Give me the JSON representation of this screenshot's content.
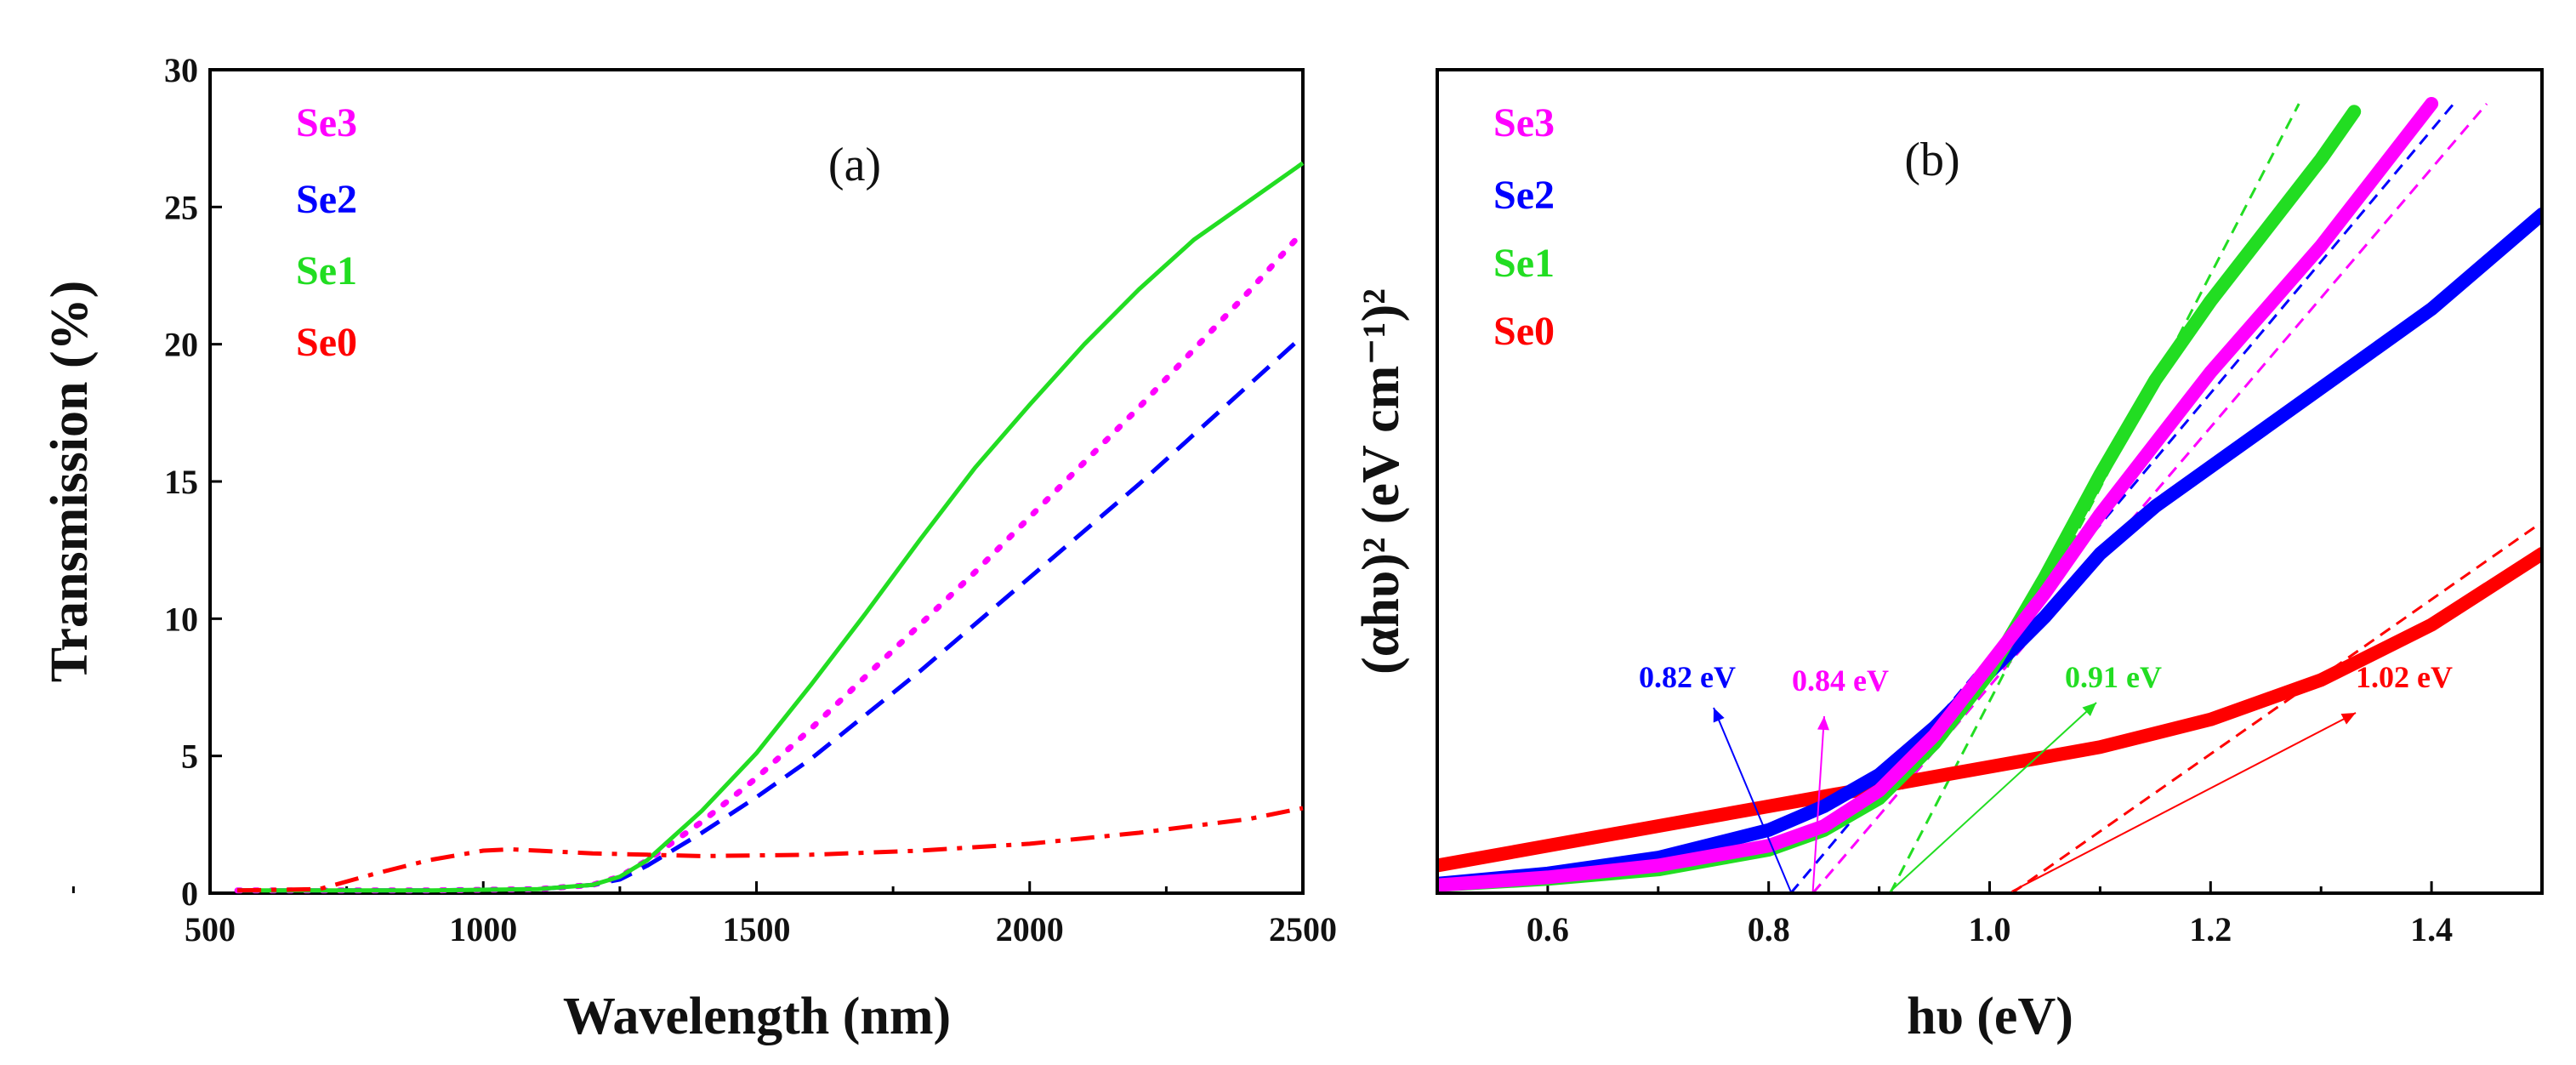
{
  "chart_data": [
    {
      "type": "line",
      "panel_label": "(a)",
      "xlabel": "Wavelength (nm)",
      "ylabel": "Transmission (%)",
      "xlim": [
        500,
        2500
      ],
      "ylim": [
        0,
        30
      ],
      "xticks": [
        "500",
        "1000",
        "1500",
        "2000",
        "2500"
      ],
      "yticks": [
        "0",
        "5",
        "10",
        "15",
        "20",
        "25",
        "30"
      ],
      "legend": [
        "Se3",
        "Se2",
        "Se1",
        "Se0"
      ],
      "series": [
        {
          "name": "Se3",
          "color": "#ff00ff",
          "style": "dotted",
          "x": [
            550,
            700,
            900,
            1100,
            1200,
            1250,
            1300,
            1400,
            1500,
            1600,
            1700,
            1800,
            1900,
            2000,
            2100,
            2200,
            2300,
            2400,
            2500
          ],
          "y": [
            0.1,
            0.1,
            0.1,
            0.15,
            0.3,
            0.6,
            1.2,
            2.6,
            4.2,
            6.0,
            7.9,
            9.8,
            11.7,
            13.7,
            15.7,
            17.7,
            19.8,
            21.9,
            24.1
          ]
        },
        {
          "name": "Se2",
          "color": "#0000ff",
          "style": "dashed",
          "x": [
            550,
            700,
            900,
            1100,
            1200,
            1250,
            1300,
            1400,
            1500,
            1600,
            1700,
            1800,
            1900,
            2000,
            2100,
            2200,
            2300,
            2400,
            2500
          ],
          "y": [
            0.1,
            0.1,
            0.1,
            0.15,
            0.3,
            0.5,
            1.0,
            2.2,
            3.5,
            4.9,
            6.5,
            8.1,
            9.8,
            11.5,
            13.2,
            14.9,
            16.7,
            18.5,
            20.3
          ]
        },
        {
          "name": "Se1",
          "color": "#22dd22",
          "style": "solid",
          "x": [
            550,
            700,
            900,
            1100,
            1200,
            1250,
            1300,
            1400,
            1500,
            1600,
            1700,
            1800,
            1900,
            2000,
            2100,
            2200,
            2300,
            2400,
            2500
          ],
          "y": [
            0.1,
            0.1,
            0.1,
            0.15,
            0.3,
            0.6,
            1.2,
            3.0,
            5.1,
            7.6,
            10.2,
            12.9,
            15.5,
            17.8,
            20.0,
            22.0,
            23.8,
            25.2,
            26.6
          ]
        },
        {
          "name": "Se0",
          "color": "#ff0000",
          "style": "dashdot",
          "x": [
            550,
            700,
            800,
            900,
            1000,
            1050,
            1100,
            1200,
            1300,
            1400,
            1600,
            1800,
            2000,
            2200,
            2400,
            2500
          ],
          "y": [
            0.1,
            0.15,
            0.7,
            1.2,
            1.55,
            1.6,
            1.55,
            1.45,
            1.4,
            1.35,
            1.4,
            1.55,
            1.8,
            2.2,
            2.7,
            3.1
          ]
        }
      ]
    },
    {
      "type": "scatter",
      "panel_label": "(b)",
      "xlabel": "hυ (eV)",
      "ylabel": "(αhυ)² (eV cm⁻¹)²",
      "xlim": [
        0.5,
        1.5
      ],
      "ylim": [
        0,
        100
      ],
      "y_ticks_shown": false,
      "xticks": [
        "0.6",
        "0.8",
        "1.0",
        "1.2",
        "1.4"
      ],
      "legend": [
        "Se3",
        "Se2",
        "Se1",
        "Se0"
      ],
      "series": [
        {
          "name": "Se3",
          "color": "#ff00ff",
          "x": [
            0.5,
            0.6,
            0.7,
            0.8,
            0.85,
            0.9,
            0.95,
            1.0,
            1.05,
            1.1,
            1.15,
            1.2,
            1.25,
            1.3,
            1.35,
            1.4
          ],
          "y": [
            1,
            2,
            3.5,
            6,
            8.5,
            13,
            20,
            29,
            38,
            48,
            57,
            66,
            74,
            82,
            91,
            100
          ]
        },
        {
          "name": "Se2",
          "color": "#0000ff",
          "x": [
            0.5,
            0.6,
            0.7,
            0.8,
            0.85,
            0.9,
            0.95,
            1.0,
            1.05,
            1.1,
            1.15,
            1.2,
            1.25,
            1.3,
            1.35,
            1.4,
            1.45,
            1.5
          ],
          "y": [
            1.2,
            2.5,
            4.5,
            8,
            11,
            15,
            21,
            28,
            35,
            43,
            49,
            54,
            59,
            64,
            69,
            74,
            80,
            86
          ]
        },
        {
          "name": "Se1",
          "color": "#22dd22",
          "x": [
            0.5,
            0.6,
            0.7,
            0.8,
            0.85,
            0.9,
            0.95,
            1.0,
            1.05,
            1.1,
            1.15,
            1.2,
            1.25,
            1.3,
            1.33
          ],
          "y": [
            1,
            1.8,
            3,
            5.5,
            8,
            12,
            19,
            28,
            40,
            53,
            65,
            75,
            84,
            93,
            99
          ]
        },
        {
          "name": "Se0",
          "color": "#ff0000",
          "x": [
            0.5,
            0.6,
            0.7,
            0.8,
            0.9,
            1.0,
            1.1,
            1.2,
            1.3,
            1.4,
            1.5
          ],
          "y": [
            3.5,
            6,
            8.5,
            11,
            13.5,
            16,
            18.5,
            22,
            27,
            34,
            43
          ]
        }
      ],
      "fit_lines": [
        {
          "name": "Se3",
          "color": "#ff00ff",
          "x": [
            0.84,
            1.45
          ],
          "y": [
            0,
            100
          ]
        },
        {
          "name": "Se2",
          "color": "#0000ff",
          "x": [
            0.82,
            1.42
          ],
          "y": [
            0,
            100
          ]
        },
        {
          "name": "Se1",
          "color": "#22dd22",
          "x": [
            0.91,
            1.28
          ],
          "y": [
            0,
            100
          ]
        },
        {
          "name": "Se0",
          "color": "#ff0000",
          "x": [
            1.02,
            1.5
          ],
          "y": [
            0,
            47
          ]
        }
      ],
      "annotations": [
        {
          "text": "0.82 eV",
          "color": "#0000ff",
          "x_value": 0.82
        },
        {
          "text": "0.84 eV",
          "color": "#ff00ff",
          "x_value": 0.84
        },
        {
          "text": "0.91 eV",
          "color": "#22dd22",
          "x_value": 0.91
        },
        {
          "text": "1.02 eV",
          "color": "#ff0000",
          "x_value": 1.02
        }
      ]
    }
  ]
}
